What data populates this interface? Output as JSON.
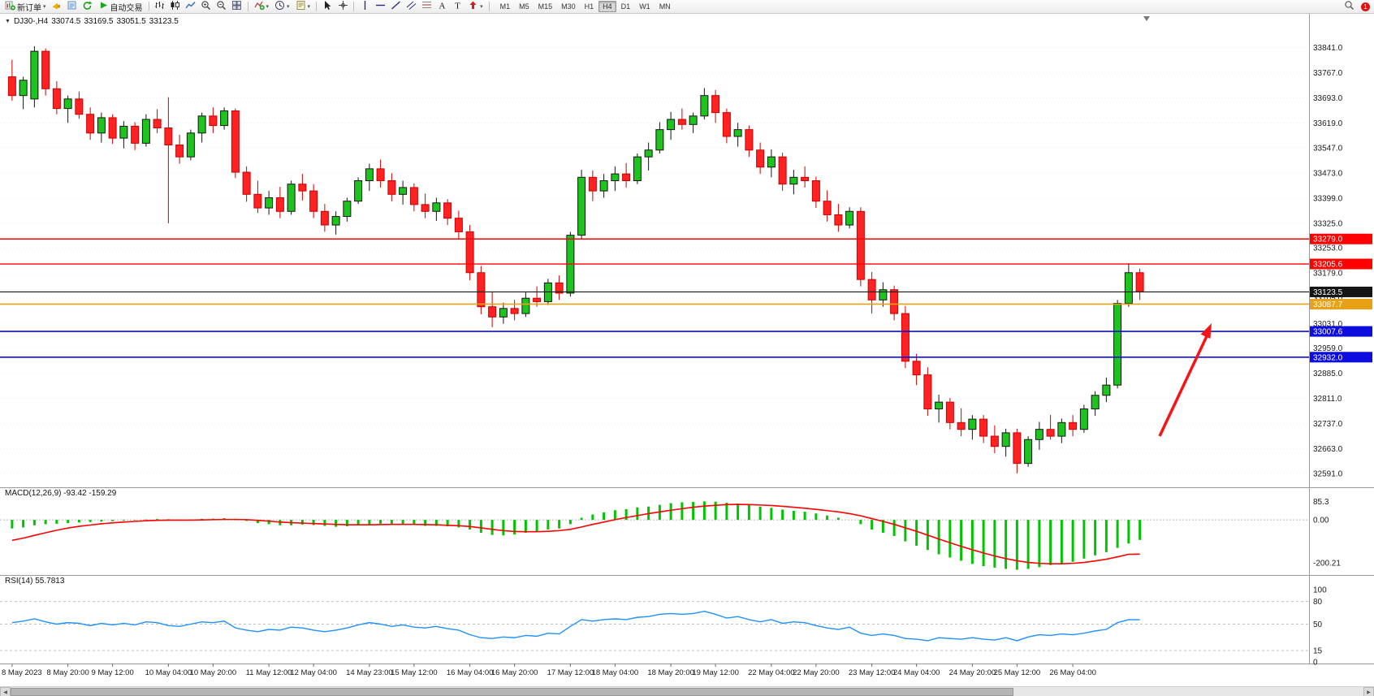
{
  "toolbar": {
    "new_order": "新订单",
    "auto_trading": "自动交易",
    "timeframes": [
      "M1",
      "M5",
      "M15",
      "M30",
      "H1",
      "H4",
      "D1",
      "W1",
      "MN"
    ],
    "active_timeframe": "H4",
    "notification": "1",
    "icons": [
      "new-order-icon",
      "signals-icon",
      "profiles-icon",
      "refresh-icon",
      "auto-trading-icon",
      "bar-chart-icon",
      "candlestick-chart-icon",
      "line-chart-icon",
      "zoom-in-icon",
      "zoom-out-icon",
      "tile-windows-icon",
      "indicators-icon",
      "periods-icon",
      "templates-icon",
      "cursor-icon",
      "crosshair-icon",
      "vertical-line-icon",
      "horizontal-line-icon",
      "trendline-icon",
      "channel-icon",
      "fibonacci-icon",
      "text-icon",
      "label-icon",
      "arrows-icon",
      "search-icon"
    ]
  },
  "chart_header": {
    "collapse_glyph": "▼",
    "symbol": "DJ30-,H4",
    "open": "33074.5",
    "high": "33169.5",
    "low": "33051.5",
    "close": "33123.5"
  },
  "indicator_labels": {
    "macd": "MACD(12,26,9)",
    "macd_values": "-93.42 -159.29",
    "rsi": "RSI(14)",
    "rsi_value": "55.7813"
  },
  "colors": {
    "up": "#1ec41e",
    "up_border": "#151515",
    "down": "#ff2222",
    "down_border": "#cc0000",
    "macd_hist": "#00c400",
    "macd_signal": "#ff0000",
    "rsi_line": "#1e90ff",
    "line_red": "#ff0000",
    "line_blue": "#0d0de0",
    "line_orange": "#e8a014",
    "line_black": "#151515",
    "grid": "#ececec",
    "axis_text": "#1a1a1a",
    "separator": "#9a9a9a",
    "arrow": "#f51515"
  },
  "chart_data": [
    {
      "type": "candlestick",
      "symbol": "DJ30-",
      "timeframe": "H4",
      "ylim": [
        32550,
        33940
      ],
      "y_tick_labels": [
        "33841.0",
        "33767.0",
        "33693.0",
        "33619.0",
        "33547.0",
        "33473.0",
        "33399.0",
        "33325.0",
        "33253.0",
        "33179.0",
        "33105.0",
        "33031.0",
        "32959.0",
        "32885.0",
        "32811.0",
        "32737.0",
        "32663.0",
        "32591.0"
      ],
      "hlines": [
        {
          "price": 33279.0,
          "label": "33279.0",
          "color": "#ff0000",
          "width": 1.4,
          "draggable": true
        },
        {
          "price": 33205.6,
          "label": "33205.6",
          "color": "#ff0000",
          "width": 1.4,
          "draggable": true
        },
        {
          "price": 33123.5,
          "label": "33123.5",
          "color": "#151515",
          "width": 1.1,
          "draggable": false
        },
        {
          "price": 33087.7,
          "label": "33087.7",
          "color": "#e8a014",
          "width": 1.6,
          "draggable": true
        },
        {
          "price": 33007.6,
          "label": "33007.6",
          "color": "#0d0de0",
          "width": 1.6,
          "draggable": true
        },
        {
          "price": 32932.0,
          "label": "32932.0",
          "color": "#0d0de0",
          "width": 1.6,
          "draggable": true
        }
      ],
      "annotation": {
        "type": "arrow-up",
        "color": "#f51515"
      },
      "x_labels": [
        {
          "i": 0,
          "t": "8 May 2023"
        },
        {
          "i": 5,
          "t": "8 May 20:00"
        },
        {
          "i": 9,
          "t": "9 May 12:00"
        },
        {
          "i": 14,
          "t": "10 May 04:00"
        },
        {
          "i": 18,
          "t": "10 May 20:00"
        },
        {
          "i": 23,
          "t": "11 May 12:00"
        },
        {
          "i": 27,
          "t": "12 May 04:00"
        },
        {
          "i": 32,
          "t": "14 May 23:00"
        },
        {
          "i": 36,
          "t": "15 May 12:00"
        },
        {
          "i": 41,
          "t": "16 May 04:00"
        },
        {
          "i": 45,
          "t": "16 May 20:00"
        },
        {
          "i": 50,
          "t": "17 May 12:00"
        },
        {
          "i": 54,
          "t": "18 May 04:00"
        },
        {
          "i": 59,
          "t": "18 May 20:00"
        },
        {
          "i": 63,
          "t": "19 May 12:00"
        },
        {
          "i": 68,
          "t": "22 May 04:00"
        },
        {
          "i": 72,
          "t": "22 May 20:00"
        },
        {
          "i": 77,
          "t": "23 May 12:00"
        },
        {
          "i": 81,
          "t": "24 May 04:00"
        },
        {
          "i": 86,
          "t": "24 May 20:00"
        },
        {
          "i": 90,
          "t": "25 May 12:00"
        },
        {
          "i": 95,
          "t": "26 May 04:00"
        }
      ],
      "ohlc": [
        [
          33755,
          33805,
          33685,
          33700
        ],
        [
          33700,
          33755,
          33660,
          33745
        ],
        [
          33690,
          33845,
          33665,
          33830
        ],
        [
          33830,
          33838,
          33700,
          33720
        ],
        [
          33720,
          33742,
          33645,
          33662
        ],
        [
          33662,
          33700,
          33620,
          33690
        ],
        [
          33690,
          33712,
          33632,
          33645
        ],
        [
          33645,
          33665,
          33570,
          33590
        ],
        [
          33590,
          33650,
          33562,
          33635
        ],
        [
          33635,
          33645,
          33558,
          33575
        ],
        [
          33575,
          33625,
          33545,
          33610
        ],
        [
          33610,
          33622,
          33540,
          33560
        ],
        [
          33560,
          33645,
          33550,
          33630
        ],
        [
          33630,
          33660,
          33590,
          33605
        ],
        [
          33605,
          33695,
          33325,
          33555
        ],
        [
          33555,
          33585,
          33500,
          33520
        ],
        [
          33520,
          33600,
          33510,
          33590
        ],
        [
          33590,
          33650,
          33562,
          33640
        ],
        [
          33640,
          33665,
          33590,
          33612
        ],
        [
          33612,
          33665,
          33600,
          33655
        ],
        [
          33655,
          33662,
          33458,
          33475
        ],
        [
          33475,
          33492,
          33388,
          33410
        ],
        [
          33410,
          33450,
          33355,
          33370
        ],
        [
          33370,
          33420,
          33350,
          33400
        ],
        [
          33400,
          33432,
          33340,
          33360
        ],
        [
          33360,
          33450,
          33350,
          33440
        ],
        [
          33440,
          33470,
          33392,
          33420
        ],
        [
          33420,
          33440,
          33340,
          33360
        ],
        [
          33360,
          33382,
          33300,
          33320
        ],
        [
          33320,
          33360,
          33292,
          33345
        ],
        [
          33345,
          33400,
          33330,
          33390
        ],
        [
          33390,
          33460,
          33382,
          33450
        ],
        [
          33450,
          33500,
          33420,
          33485
        ],
        [
          33485,
          33512,
          33430,
          33450
        ],
        [
          33450,
          33472,
          33390,
          33410
        ],
        [
          33410,
          33450,
          33380,
          33430
        ],
        [
          33430,
          33442,
          33360,
          33380
        ],
        [
          33380,
          33412,
          33340,
          33360
        ],
        [
          33360,
          33400,
          33332,
          33385
        ],
        [
          33385,
          33396,
          33320,
          33340
        ],
        [
          33340,
          33362,
          33280,
          33300
        ],
        [
          33300,
          33320,
          33158,
          33180
        ],
        [
          33180,
          33200,
          33058,
          33080
        ],
        [
          33080,
          33122,
          33020,
          33050
        ],
        [
          33050,
          33092,
          33030,
          33075
        ],
        [
          33075,
          33100,
          33040,
          33060
        ],
        [
          33060,
          33122,
          33050,
          33105
        ],
        [
          33105,
          33140,
          33080,
          33095
        ],
        [
          33095,
          33162,
          33085,
          33150
        ],
        [
          33150,
          33172,
          33100,
          33120
        ],
        [
          33120,
          33300,
          33110,
          33290
        ],
        [
          33290,
          33482,
          33280,
          33460
        ],
        [
          33460,
          33480,
          33390,
          33420
        ],
        [
          33420,
          33470,
          33400,
          33450
        ],
        [
          33450,
          33492,
          33420,
          33470
        ],
        [
          33470,
          33502,
          33430,
          33450
        ],
        [
          33450,
          33530,
          33440,
          33520
        ],
        [
          33520,
          33562,
          33480,
          33540
        ],
        [
          33540,
          33622,
          33530,
          33600
        ],
        [
          33600,
          33652,
          33570,
          33630
        ],
        [
          33630,
          33662,
          33600,
          33615
        ],
        [
          33615,
          33650,
          33590,
          33640
        ],
        [
          33640,
          33722,
          33630,
          33700
        ],
        [
          33700,
          33716,
          33620,
          33650
        ],
        [
          33650,
          33662,
          33560,
          33580
        ],
        [
          33580,
          33620,
          33550,
          33600
        ],
        [
          33600,
          33612,
          33520,
          33540
        ],
        [
          33540,
          33562,
          33470,
          33490
        ],
        [
          33490,
          33542,
          33460,
          33520
        ],
        [
          33520,
          33532,
          33420,
          33440
        ],
        [
          33440,
          33482,
          33410,
          33460
        ],
        [
          33460,
          33492,
          33430,
          33450
        ],
        [
          33450,
          33462,
          33370,
          33390
        ],
        [
          33390,
          33422,
          33330,
          33350
        ],
        [
          33350,
          33382,
          33300,
          33320
        ],
        [
          33320,
          33372,
          33310,
          33360
        ],
        [
          33360,
          33372,
          33140,
          33160
        ],
        [
          33160,
          33182,
          33060,
          33100
        ],
        [
          33100,
          33152,
          33080,
          33130
        ],
        [
          33130,
          33142,
          33040,
          33060
        ],
        [
          33060,
          33082,
          32900,
          32920
        ],
        [
          32920,
          32942,
          32850,
          32880
        ],
        [
          32880,
          32902,
          32760,
          32780
        ],
        [
          32780,
          32822,
          32740,
          32800
        ],
        [
          32800,
          32812,
          32720,
          32740
        ],
        [
          32740,
          32782,
          32700,
          32720
        ],
        [
          32720,
          32762,
          32690,
          32750
        ],
        [
          32750,
          32762,
          32680,
          32700
        ],
        [
          32700,
          32732,
          32650,
          32670
        ],
        [
          32670,
          32722,
          32640,
          32710
        ],
        [
          32710,
          32722,
          32591,
          32620
        ],
        [
          32620,
          32700,
          32610,
          32690
        ],
        [
          32690,
          32742,
          32660,
          32720
        ],
        [
          32720,
          32762,
          32690,
          32700
        ],
        [
          32700,
          32752,
          32680,
          32740
        ],
        [
          32740,
          32762,
          32700,
          32720
        ],
        [
          32720,
          32792,
          32710,
          32780
        ],
        [
          32780,
          32832,
          32760,
          32820
        ],
        [
          32820,
          32872,
          32800,
          32850
        ],
        [
          32850,
          33100,
          32840,
          33090
        ],
        [
          33090,
          33208,
          33080,
          33180
        ],
        [
          33180,
          33192,
          33100,
          33123.5
        ]
      ]
    },
    {
      "type": "macd-histogram",
      "label": "MACD(12,26,9)",
      "values": "-93.42 -159.29",
      "ylim": [
        -245,
        95
      ],
      "y_tick_labels": [
        "85.3",
        "0.00",
        "-200.21"
      ],
      "histogram": [
        -40,
        -35,
        -25,
        -20,
        -18,
        -15,
        -12,
        -10,
        -8,
        -6,
        -4,
        -2,
        2,
        4,
        3,
        1,
        2,
        5,
        6,
        8,
        5,
        -5,
        -15,
        -20,
        -25,
        -25,
        -22,
        -24,
        -28,
        -32,
        -30,
        -25,
        -20,
        -18,
        -20,
        -20,
        -24,
        -28,
        -28,
        -30,
        -35,
        -45,
        -60,
        -70,
        -72,
        -68,
        -60,
        -55,
        -45,
        -40,
        -20,
        10,
        25,
        35,
        45,
        50,
        58,
        62,
        70,
        78,
        82,
        84,
        86,
        85,
        80,
        76,
        70,
        62,
        56,
        48,
        42,
        38,
        30,
        20,
        10,
        0,
        -20,
        -45,
        -60,
        -75,
        -100,
        -120,
        -140,
        -160,
        -175,
        -190,
        -205,
        -215,
        -222,
        -228,
        -232,
        -228,
        -220,
        -210,
        -205,
        -195,
        -180,
        -165,
        -150,
        -130,
        -110,
        -93.4
      ],
      "signal": [
        -95,
        -85,
        -72,
        -60,
        -48,
        -38,
        -30,
        -24,
        -18,
        -14,
        -10,
        -7,
        -4,
        -2,
        -1,
        -1,
        -1,
        0,
        1,
        2,
        2,
        1,
        -2,
        -6,
        -10,
        -13,
        -15,
        -17,
        -19,
        -21,
        -23,
        -23,
        -23,
        -22,
        -21,
        -21,
        -21,
        -22,
        -23,
        -25,
        -27,
        -31,
        -37,
        -44,
        -50,
        -54,
        -55,
        -55,
        -53,
        -50,
        -44,
        -33,
        -21,
        -10,
        1,
        11,
        20,
        29,
        37,
        45,
        52,
        59,
        64,
        68,
        71,
        72,
        71,
        69,
        67,
        63,
        59,
        54,
        49,
        43,
        37,
        29,
        19,
        6,
        -7,
        -21,
        -37,
        -53,
        -71,
        -89,
        -106,
        -123,
        -139,
        -154,
        -168,
        -180,
        -190,
        -198,
        -202,
        -204,
        -204,
        -202,
        -198,
        -191,
        -183,
        -172,
        -160,
        -159.3
      ]
    },
    {
      "type": "line",
      "label": "RSI(14)",
      "value": "55.7813",
      "ylim": [
        0,
        100
      ],
      "levels": [
        80,
        50,
        15
      ],
      "y_tick_labels": [
        "100",
        "80",
        "50",
        "15",
        "0"
      ],
      "values": [
        52,
        54,
        57,
        53,
        50,
        52,
        51,
        48,
        51,
        49,
        51,
        49,
        53,
        52,
        48,
        47,
        50,
        53,
        52,
        54,
        45,
        42,
        40,
        43,
        42,
        46,
        45,
        42,
        40,
        42,
        45,
        49,
        52,
        50,
        47,
        49,
        46,
        45,
        47,
        44,
        42,
        36,
        32,
        31,
        33,
        32,
        35,
        34,
        38,
        37,
        47,
        56,
        54,
        56,
        57,
        56,
        59,
        60,
        63,
        64,
        63,
        64,
        67,
        63,
        58,
        60,
        56,
        53,
        56,
        51,
        53,
        52,
        48,
        45,
        43,
        46,
        38,
        35,
        37,
        35,
        31,
        30,
        28,
        32,
        31,
        30,
        32,
        30,
        29,
        32,
        28,
        33,
        36,
        35,
        37,
        36,
        38,
        41,
        43,
        52,
        56,
        55.78
      ]
    }
  ]
}
